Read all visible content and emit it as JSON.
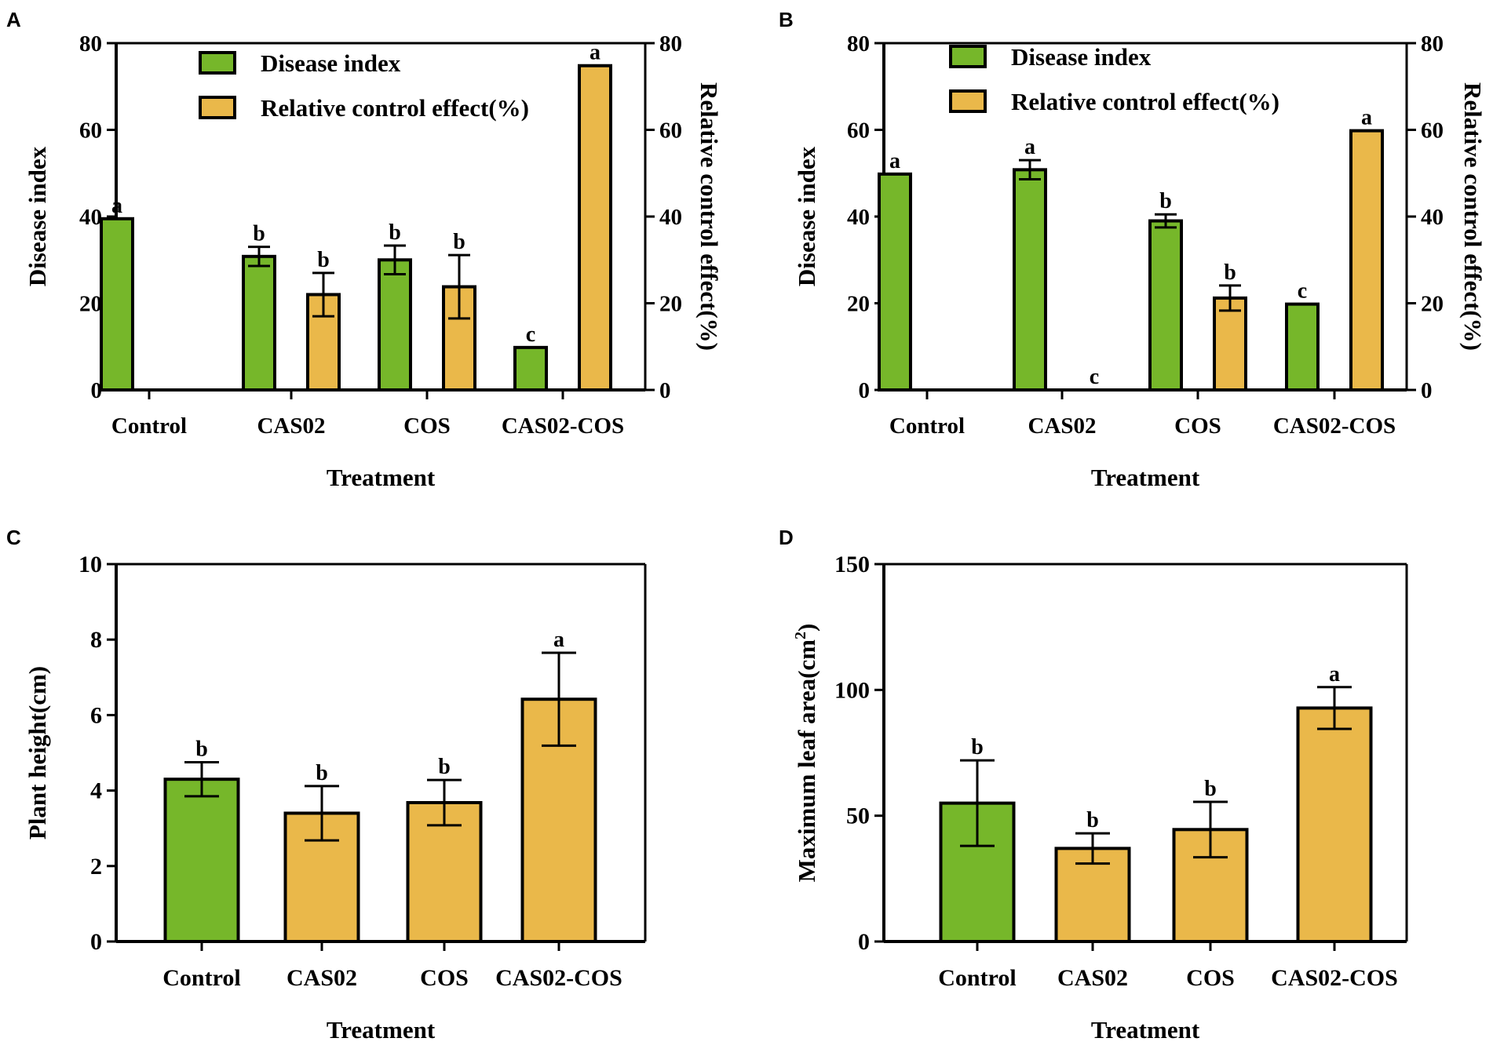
{
  "colors": {
    "green": "#76b72a",
    "orange": "#eab84a",
    "axis": "#000000"
  },
  "chart_data": [
    {
      "panel": "A",
      "type": "bar",
      "categories": [
        "Control",
        "CAS02",
        "COS",
        "CAS02-COS"
      ],
      "xlabel": "Treatment",
      "ylabel": "Disease index",
      "y2label": "Relative control effect(%)",
      "ylim": [
        0,
        80
      ],
      "yticks": [
        0,
        20,
        40,
        60,
        80
      ],
      "y2lim": [
        0,
        80
      ],
      "y2ticks": [
        0,
        20,
        40,
        60,
        80
      ],
      "legend": [
        "Disease index",
        "Relative control effect(%)"
      ],
      "legend_position": "top-center",
      "series": [
        {
          "name": "Disease index",
          "color": "green",
          "axis": "left",
          "values": [
            39.5,
            30.8,
            30.0,
            9.8
          ],
          "errors": [
            0,
            2.2,
            3.3,
            0
          ],
          "labels": [
            "a",
            "b",
            "b",
            "c"
          ]
        },
        {
          "name": "Relative control effect(%)",
          "color": "orange",
          "axis": "right",
          "values": [
            0,
            22.0,
            23.8,
            74.8
          ],
          "errors": [
            0,
            5.0,
            7.3,
            0
          ],
          "labels": [
            "",
            "b",
            "b",
            "a"
          ]
        }
      ]
    },
    {
      "panel": "B",
      "type": "bar",
      "categories": [
        "Control",
        "CAS02",
        "COS",
        "CAS02-COS"
      ],
      "xlabel": "Treatment",
      "ylabel": "Disease index",
      "y2label": "Relative control effect(%)",
      "ylim": [
        0,
        80
      ],
      "yticks": [
        0,
        20,
        40,
        60,
        80
      ],
      "y2lim": [
        0,
        80
      ],
      "y2ticks": [
        0,
        20,
        40,
        60,
        80
      ],
      "legend": [
        "Disease index",
        "Relative control effect(%)"
      ],
      "legend_position": "top-center",
      "series": [
        {
          "name": "Disease index",
          "color": "green",
          "axis": "left",
          "values": [
            49.8,
            50.8,
            39.0,
            19.8
          ],
          "errors": [
            0,
            2.2,
            1.5,
            0
          ],
          "labels": [
            "a",
            "a",
            "b",
            "c"
          ]
        },
        {
          "name": "Relative control effect(%)",
          "color": "orange",
          "axis": "right",
          "values": [
            0,
            0,
            21.2,
            59.8
          ],
          "errors": [
            0,
            0,
            2.9,
            0
          ],
          "labels": [
            "",
            "c",
            "b",
            "a"
          ]
        }
      ]
    },
    {
      "panel": "C",
      "type": "bar",
      "categories": [
        "Control",
        "CAS02",
        "COS",
        "CAS02-COS"
      ],
      "xlabel": "Treatment",
      "ylabel": "Plant height(cm)",
      "ylim": [
        0,
        10
      ],
      "yticks": [
        0,
        2,
        4,
        6,
        8,
        10
      ],
      "values": [
        4.3,
        3.4,
        3.68,
        6.42
      ],
      "errors": [
        0.45,
        0.72,
        0.6,
        1.23
      ],
      "labels": [
        "b",
        "b",
        "b",
        "a"
      ],
      "bar_colors": [
        "green",
        "orange",
        "orange",
        "orange"
      ]
    },
    {
      "panel": "D",
      "type": "bar",
      "categories": [
        "Control",
        "CAS02",
        "COS",
        "CAS02-COS"
      ],
      "xlabel": "Treatment",
      "ylabel": "Maximum leaf area(cm",
      "ylabel_superscript": "2",
      "ylabel_suffix": ")",
      "ylim": [
        0,
        150
      ],
      "yticks": [
        0,
        50,
        100,
        150
      ],
      "values": [
        55.0,
        37.0,
        44.5,
        92.8
      ],
      "errors": [
        17.0,
        6.0,
        11.0,
        8.3
      ],
      "labels": [
        "b",
        "b",
        "b",
        "a"
      ],
      "bar_colors": [
        "green",
        "orange",
        "orange",
        "orange"
      ]
    }
  ]
}
